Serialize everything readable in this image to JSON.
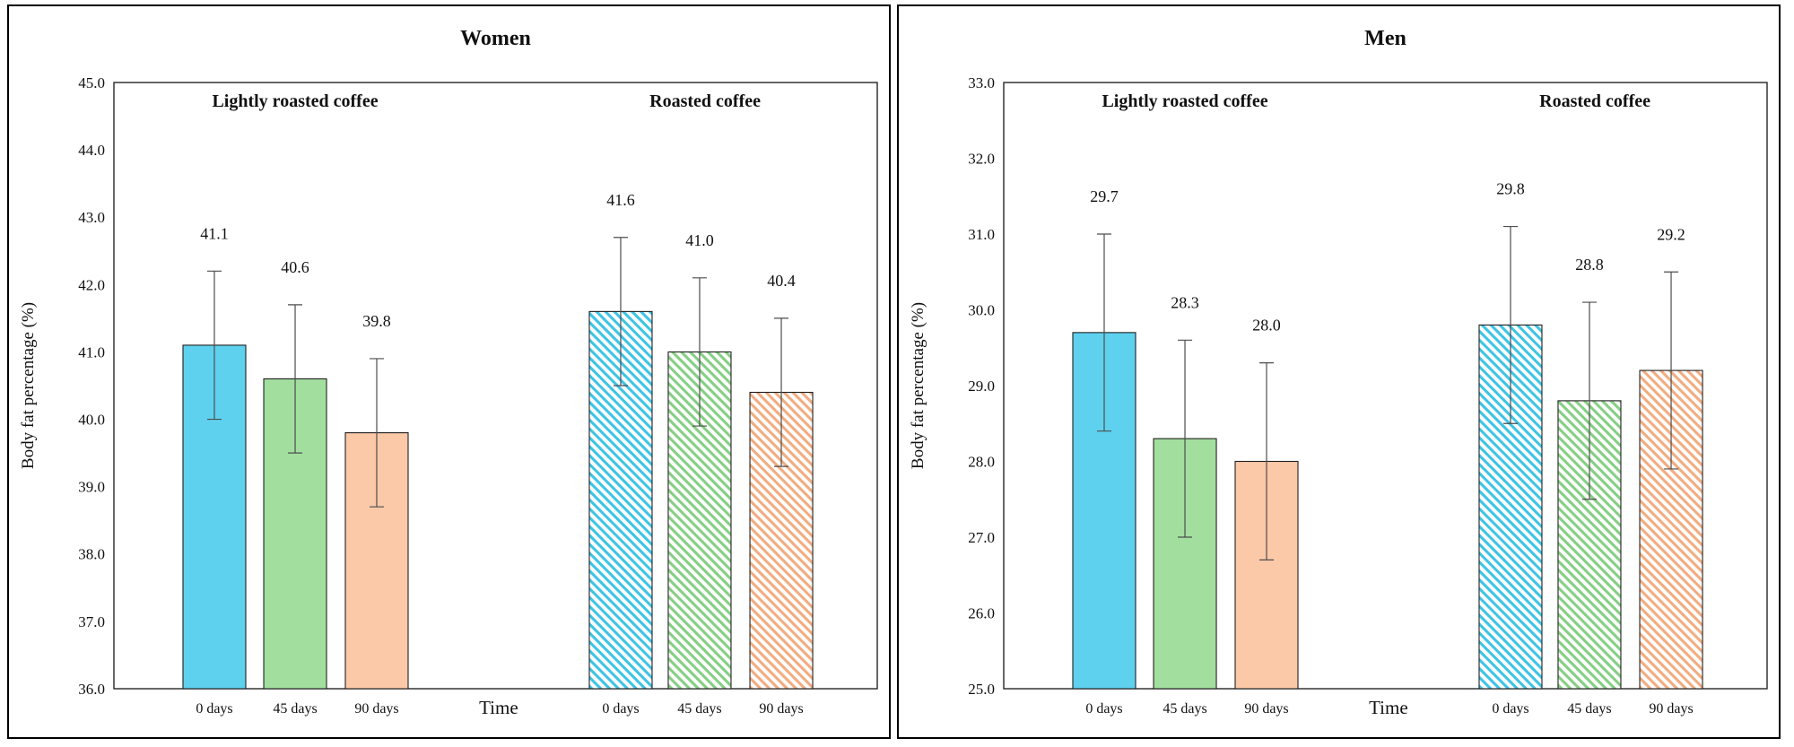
{
  "figure": {
    "background": "#ffffff",
    "panel_border_color": "#000000",
    "frame_color": "#262626",
    "error_bar_color": "#4d4d4d",
    "bar_edge_color": "#1f1f1f",
    "text_color": "#111111"
  },
  "chart_data": [
    {
      "type": "bar",
      "title": "Women",
      "ylabel": "Body fat percentage (%)",
      "xlabel": "Time",
      "ylim": [
        36.0,
        45.0
      ],
      "ytick_step": 1.0,
      "grid": false,
      "ytick_labels": [
        "45.0",
        "44.0",
        "43.0",
        "42.0",
        "41.0",
        "40.0",
        "39.0",
        "38.0",
        "37.0",
        "36.0"
      ],
      "group_labels": [
        "Lightly roasted coffee",
        "Roasted coffee"
      ],
      "categories": [
        "0 days",
        "45 days",
        "90 days"
      ],
      "series": [
        {
          "name": "Lightly roasted coffee",
          "hatch": false,
          "values": [
            41.1,
            40.6,
            39.8
          ],
          "value_labels": [
            "41.1",
            "40.6",
            "39.8"
          ],
          "errors": [
            1.1,
            1.1,
            1.1
          ]
        },
        {
          "name": "Roasted coffee",
          "hatch": true,
          "values": [
            41.6,
            41.0,
            40.4
          ],
          "value_labels": [
            "41.6",
            "41.0",
            "40.4"
          ],
          "errors": [
            1.1,
            1.1,
            1.1
          ]
        }
      ],
      "bar_colors": [
        "#5ED1EE",
        "#A2DF9F",
        "#FBC9A8"
      ],
      "hatch_colors": [
        "#3EC4E5",
        "#85CF83",
        "#F2AC80"
      ],
      "legend": "none"
    },
    {
      "type": "bar",
      "title": "Men",
      "ylabel": "Body fat percentage (%)",
      "xlabel": "Time",
      "ylim": [
        25.0,
        33.0
      ],
      "ytick_step": 1.0,
      "grid": false,
      "ytick_labels": [
        "33.0",
        "32.0",
        "31.0",
        "30.0",
        "29.0",
        "28.0",
        "27.0",
        "26.0",
        "25.0"
      ],
      "group_labels": [
        "Lightly roasted coffee",
        "Roasted coffee"
      ],
      "categories": [
        "0 days",
        "45 days",
        "90 days"
      ],
      "series": [
        {
          "name": "Lightly roasted coffee",
          "hatch": false,
          "values": [
            29.7,
            28.3,
            28.0
          ],
          "value_labels": [
            "29.7",
            "28.3",
            "28.0"
          ],
          "errors": [
            1.3,
            1.3,
            1.3
          ]
        },
        {
          "name": "Roasted coffee",
          "hatch": true,
          "values": [
            29.8,
            28.8,
            29.2
          ],
          "value_labels": [
            "29.8",
            "28.8",
            "29.2"
          ],
          "errors": [
            1.3,
            1.3,
            1.3
          ]
        }
      ],
      "bar_colors": [
        "#5ED1EE",
        "#A2DF9F",
        "#FBC9A8"
      ],
      "hatch_colors": [
        "#3EC4E5",
        "#85CF83",
        "#F2AC80"
      ],
      "legend": "none"
    }
  ]
}
